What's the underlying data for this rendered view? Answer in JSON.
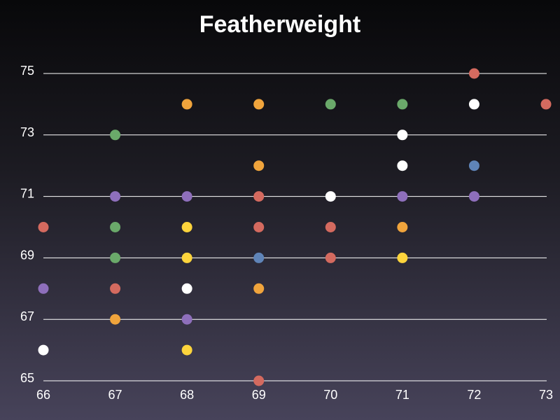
{
  "chart_data": {
    "type": "scatter",
    "title": "Featherweight",
    "xlabel": "",
    "ylabel": "",
    "xlim": [
      66,
      73
    ],
    "ylim": [
      65,
      75
    ],
    "x_ticks": [
      66,
      67,
      68,
      69,
      70,
      71,
      72,
      73
    ],
    "y_ticks": [
      65,
      67,
      69,
      71,
      73,
      75
    ],
    "grid": "horizontal",
    "colors": {
      "red": "#d46a5f",
      "orange": "#f0a43c",
      "green": "#6aa96a",
      "purple": "#8e6fbb",
      "yellow": "#fdd43c",
      "blue": "#5f84b8",
      "white": "#ffffff"
    },
    "points": [
      {
        "x": 72,
        "y": 75,
        "color": "red"
      },
      {
        "x": 68,
        "y": 74,
        "color": "orange"
      },
      {
        "x": 69,
        "y": 74,
        "color": "orange"
      },
      {
        "x": 70,
        "y": 74,
        "color": "green"
      },
      {
        "x": 71,
        "y": 74,
        "color": "green"
      },
      {
        "x": 72,
        "y": 74,
        "color": "white"
      },
      {
        "x": 73,
        "y": 74,
        "color": "red"
      },
      {
        "x": 67,
        "y": 73,
        "color": "green"
      },
      {
        "x": 71,
        "y": 73,
        "color": "white"
      },
      {
        "x": 69,
        "y": 72,
        "color": "orange"
      },
      {
        "x": 71,
        "y": 72,
        "color": "white"
      },
      {
        "x": 72,
        "y": 72,
        "color": "blue"
      },
      {
        "x": 67,
        "y": 71,
        "color": "purple"
      },
      {
        "x": 68,
        "y": 71,
        "color": "purple"
      },
      {
        "x": 69,
        "y": 71,
        "color": "red"
      },
      {
        "x": 70,
        "y": 71,
        "color": "white"
      },
      {
        "x": 71,
        "y": 71,
        "color": "purple"
      },
      {
        "x": 72,
        "y": 71,
        "color": "purple"
      },
      {
        "x": 66,
        "y": 70,
        "color": "red"
      },
      {
        "x": 67,
        "y": 70,
        "color": "green"
      },
      {
        "x": 68,
        "y": 70,
        "color": "yellow"
      },
      {
        "x": 69,
        "y": 70,
        "color": "red"
      },
      {
        "x": 70,
        "y": 70,
        "color": "red"
      },
      {
        "x": 71,
        "y": 70,
        "color": "orange"
      },
      {
        "x": 67,
        "y": 69,
        "color": "green"
      },
      {
        "x": 68,
        "y": 69,
        "color": "yellow"
      },
      {
        "x": 69,
        "y": 69,
        "color": "blue"
      },
      {
        "x": 70,
        "y": 69,
        "color": "red"
      },
      {
        "x": 71,
        "y": 69,
        "color": "yellow"
      },
      {
        "x": 66,
        "y": 68,
        "color": "purple"
      },
      {
        "x": 67,
        "y": 68,
        "color": "red"
      },
      {
        "x": 68,
        "y": 68,
        "color": "white"
      },
      {
        "x": 69,
        "y": 68,
        "color": "orange"
      },
      {
        "x": 67,
        "y": 67,
        "color": "orange"
      },
      {
        "x": 68,
        "y": 67,
        "color": "purple"
      },
      {
        "x": 66,
        "y": 66,
        "color": "white"
      },
      {
        "x": 68,
        "y": 66,
        "color": "yellow"
      },
      {
        "x": 69,
        "y": 65,
        "color": "red"
      }
    ]
  }
}
